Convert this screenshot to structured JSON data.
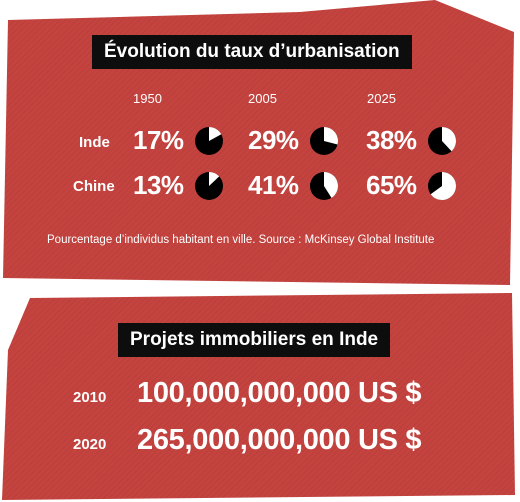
{
  "chart_data": [
    {
      "type": "pie",
      "title": "Évolution du taux d’urbanisation",
      "categories": [
        "1950",
        "2005",
        "2025"
      ],
      "series": [
        {
          "name": "Inde",
          "values": [
            17,
            29,
            38
          ],
          "labels": [
            "17%",
            "29%",
            "38%"
          ]
        },
        {
          "name": "Chine",
          "values": [
            13,
            41,
            65
          ],
          "labels": [
            "13%",
            "41%",
            "65%"
          ]
        }
      ],
      "note": "Pourcentage d’individus habitant en ville. Source : McKinsey Global Institute",
      "colors": {
        "filled": "#ffffff",
        "empty": "#000000"
      }
    },
    {
      "type": "table",
      "title": "Projets immobiliers en Inde",
      "rows": [
        {
          "year": "2010",
          "amount": "100,000,000,000 US $",
          "value": 100000000000
        },
        {
          "year": "2020",
          "amount": "265,000,000,000 US $",
          "value": 265000000000
        }
      ]
    }
  ],
  "colors": {
    "panel": "#c4433f",
    "title_bg": "#0d0d0d",
    "text": "#ffffff"
  }
}
